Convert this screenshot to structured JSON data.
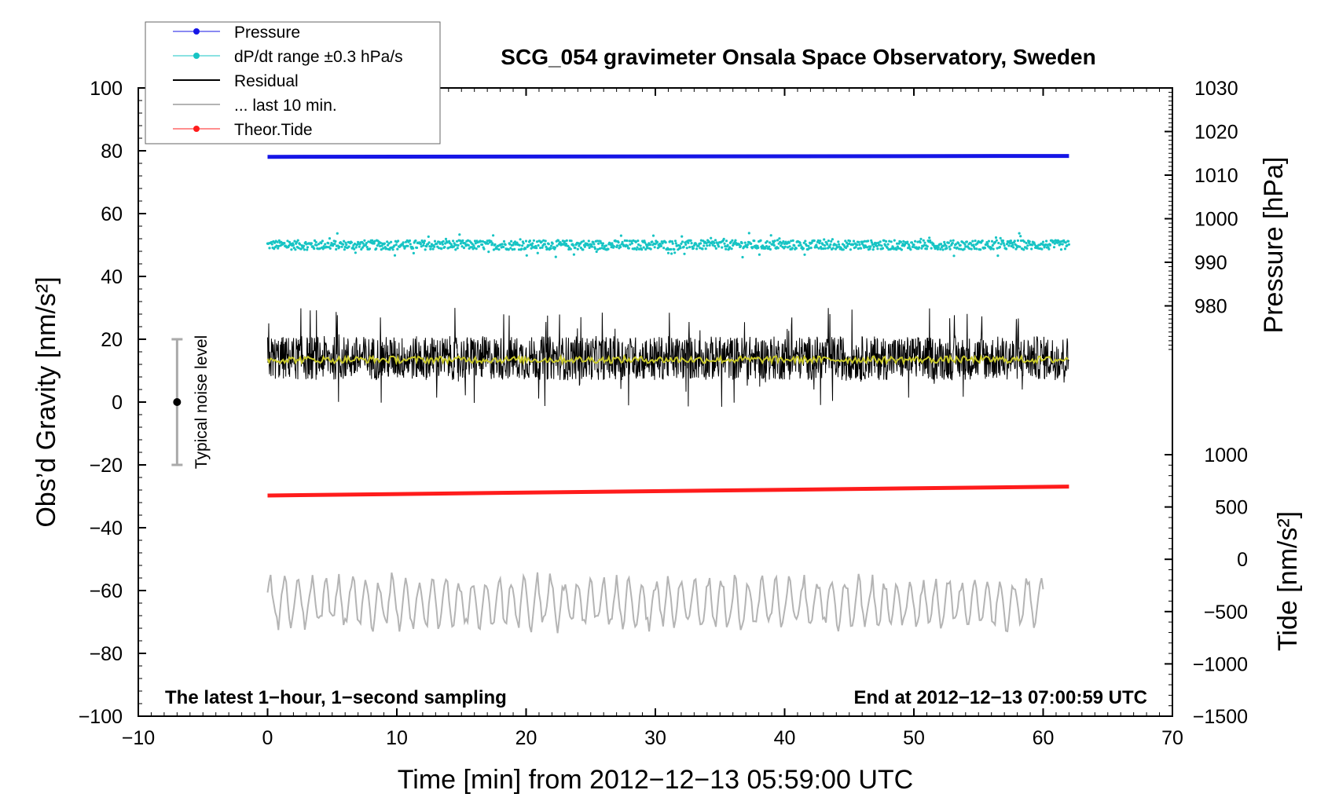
{
  "chart_data": {
    "type": "line",
    "title": "SCG_054 gravimeter Onsala Space Observatory, Sweden",
    "xlabel": "Time [min] from 2012−12−13 05:59:00 UTC",
    "ylabel_left": "Obs’d Gravity [nm/s²]",
    "ylabel_right_upper": "Pressure [hPa]",
    "ylabel_right_lower": "Tide [nm/s²]",
    "xlim": [
      -10,
      70
    ],
    "ylim": [
      -100,
      100
    ],
    "x_ticks": [
      "−10",
      "0",
      "10",
      "20",
      "30",
      "40",
      "50",
      "60",
      "70"
    ],
    "y_ticks": [
      "−100",
      "−80",
      "−60",
      "−40",
      "−20",
      "0",
      "20",
      "40",
      "60",
      "80",
      "100"
    ],
    "pressure_axis": {
      "range": [
        970,
        1030
      ],
      "ticks": [
        "980",
        "990",
        "1000",
        "1010",
        "1020",
        "1030"
      ]
    },
    "tide_axis": {
      "range": [
        -1500,
        1000
      ],
      "ticks": [
        "−1500",
        "−1000",
        "−500",
        "0",
        "500",
        "1000"
      ]
    },
    "grid": false,
    "legend": {
      "position": "top-left",
      "entries": [
        {
          "label": "Pressure",
          "color": "#1515e6",
          "marker": "dot"
        },
        {
          "label": "dP/dt range ±0.3 hPa/s",
          "color": "#17c4c4",
          "marker": "dot"
        },
        {
          "label": "Residual",
          "color": "#000000",
          "marker": "line"
        },
        {
          "label": "... last 10 min.",
          "color": "#b4b4b4",
          "marker": "line"
        },
        {
          "label": "Theor.Tide",
          "color": "#ff1c1c",
          "marker": "dot"
        }
      ]
    },
    "annotations": {
      "bottom_left": "The latest 1−hour, 1−second sampling",
      "bottom_right": "End at 2012−12−13 07:00:59 UTC",
      "noise_label": "Typical noise level"
    },
    "noise_bar": {
      "x": -7,
      "center": 0,
      "low": -20,
      "high": 20
    },
    "series": [
      {
        "name": "Pressure",
        "color": "#1515e6",
        "axis": "pressure",
        "x": [
          0,
          62
        ],
        "values": [
          1014.2,
          1014.4
        ]
      },
      {
        "name": "dP/dt range ±0.3 hPa/s",
        "color": "#17c4c4",
        "axis": "left",
        "x": [
          0,
          62
        ],
        "values": [
          50,
          50
        ],
        "spread": 1.5
      },
      {
        "name": "Residual",
        "color": "#000000",
        "axis": "left",
        "x": [
          0,
          62
        ],
        "values": [
          14,
          14
        ],
        "spread": 7
      },
      {
        "name": "Residual (smoothed)",
        "color": "#c9c92a",
        "axis": "left",
        "x": [
          0,
          62
        ],
        "values": [
          13.5,
          13.5
        ]
      },
      {
        "name": "Theor.Tide",
        "color": "#ff1c1c",
        "axis": "tide",
        "x": [
          0,
          62
        ],
        "values": [
          610,
          695
        ]
      },
      {
        "name": "... last 10 min.",
        "color": "#b4b4b4",
        "axis": "left",
        "x": [
          0,
          60
        ],
        "values": [
          -64,
          -64
        ],
        "spread": 9
      }
    ]
  }
}
